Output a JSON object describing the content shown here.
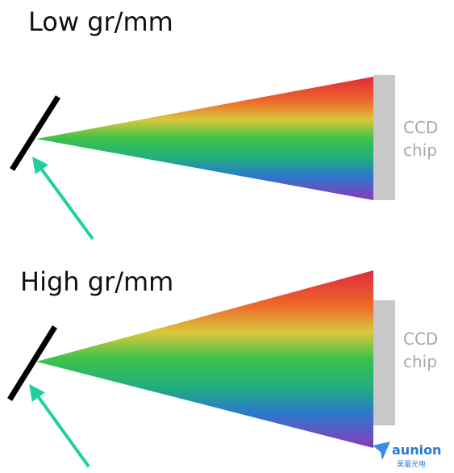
{
  "diagrams": [
    {
      "title": "Low gr/mm",
      "detector": {
        "line1": "CCD",
        "line2": "chip"
      }
    },
    {
      "title": "High gr/mm",
      "detector": {
        "line1": "CCD",
        "line2": "chip"
      }
    }
  ],
  "watermark": {
    "brand": "aunion",
    "subtitle": "昊量光电"
  }
}
